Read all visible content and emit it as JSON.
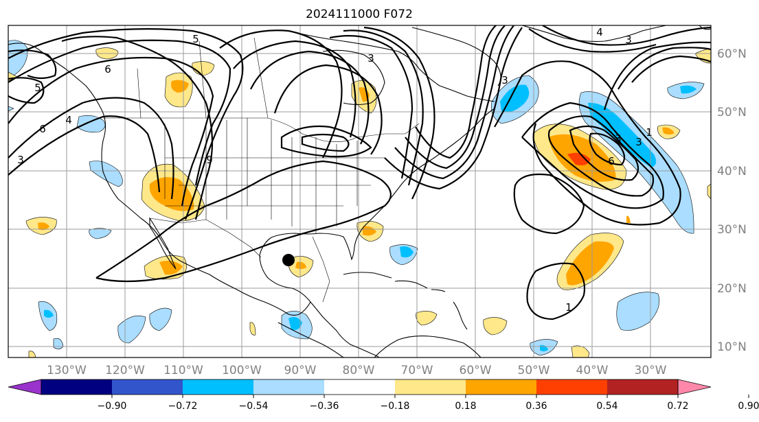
{
  "title": "2024111000 F072",
  "map": {
    "lon_labels": [
      "130°W",
      "120°W",
      "110°W",
      "100°W",
      "90°W",
      "80°W",
      "70°W",
      "60°W",
      "50°W",
      "40°W",
      "30°W"
    ],
    "lat_labels": [
      "60°N",
      "50°N",
      "40°N",
      "30°N",
      "20°N",
      "10°N"
    ],
    "contour_labels": [
      "5",
      "6",
      "5",
      "6",
      "4",
      "3",
      "9",
      "3",
      "3",
      "3",
      "4",
      "3",
      "3",
      "6",
      "1",
      "1"
    ],
    "storm_marker": "black-dot"
  },
  "colorbar": {
    "ticks": [
      "−0.90",
      "−0.72",
      "−0.54",
      "−0.36",
      "−0.18",
      "0.18",
      "0.36",
      "0.54",
      "0.72",
      "0.90"
    ],
    "colors": [
      "#9933cc",
      "#000080",
      "#3355cc",
      "#00bfff",
      "#aaddff",
      "#ffffff",
      "#ffe88a",
      "#ffa500",
      "#ff4000",
      "#b22222",
      "#ff88aa"
    ],
    "extend": "both"
  },
  "colors": {
    "blue_light": "#aaddff",
    "blue_mid": "#00bfff",
    "yellow": "#ffe88a",
    "orange": "#ffa500",
    "red": "#ff4000"
  }
}
